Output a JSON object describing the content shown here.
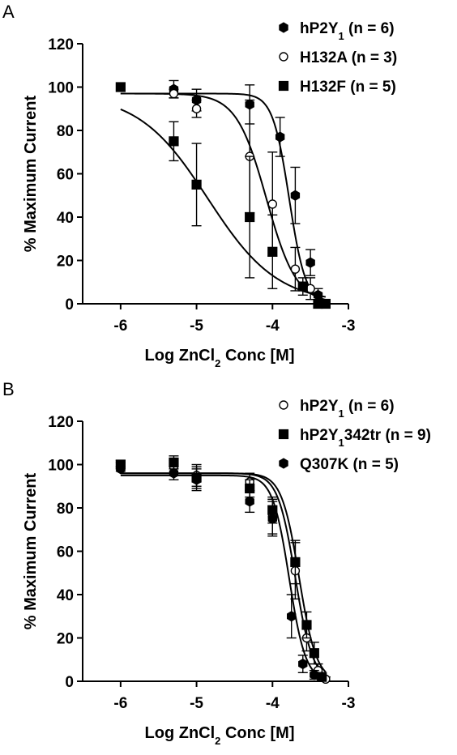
{
  "chart_data": [
    {
      "panel": "A",
      "type": "scatter",
      "ylabel": "% Maximum Current",
      "xlabel_parts": [
        "Log ZnCl",
        "2",
        " Conc [M]"
      ],
      "xlim": [
        -6.5,
        -3
      ],
      "ylim": [
        0,
        120
      ],
      "xticks": [
        -6,
        -5,
        -4,
        -3
      ],
      "yticks": [
        0,
        20,
        40,
        60,
        80,
        100,
        120
      ],
      "legend_position": "top-right",
      "grid": false,
      "series": [
        {
          "name_parts": [
            "hP2Y",
            "1",
            " (n = 6)"
          ],
          "marker": "hexagon",
          "fill": "#000000",
          "fit": {
            "top": 97,
            "bottom": 0,
            "log_ic50": -3.78,
            "hill": 4.0
          },
          "points": [
            {
              "x": -5.3,
              "y": 99,
              "err": 4
            },
            {
              "x": -5.0,
              "y": 94,
              "err": 5
            },
            {
              "x": -4.3,
              "y": 92,
              "err": 9
            },
            {
              "x": -3.9,
              "y": 77,
              "err": 9
            },
            {
              "x": -3.7,
              "y": 50,
              "err": 13
            },
            {
              "x": -3.5,
              "y": 19,
              "err": 6
            },
            {
              "x": -3.4,
              "y": 4,
              "err": 3
            }
          ]
        },
        {
          "name_parts": [
            "H132A (n = 3)"
          ],
          "marker": "circle",
          "fill": "#ffffff",
          "fit": {
            "top": 97,
            "bottom": 0,
            "log_ic50": -4.08,
            "hill": 2.2
          },
          "points": [
            {
              "x": -5.3,
              "y": 97,
              "err": 2
            },
            {
              "x": -5.0,
              "y": 90,
              "err": 4
            },
            {
              "x": -4.3,
              "y": 68,
              "err": 26
            },
            {
              "x": -4.0,
              "y": 46,
              "err": 24
            },
            {
              "x": -3.7,
              "y": 16,
              "err": 10
            },
            {
              "x": -3.5,
              "y": 7,
              "err": 5
            }
          ]
        },
        {
          "name_parts": [
            "H132F (n = 5)"
          ],
          "marker": "square",
          "fill": "#000000",
          "fit": {
            "top": 97,
            "bottom": 0,
            "log_ic50": -4.85,
            "hill": 0.95
          },
          "points": [
            {
              "x": -6.0,
              "y": 100,
              "err": 0
            },
            {
              "x": -5.3,
              "y": 75,
              "err": 9
            },
            {
              "x": -5.0,
              "y": 55,
              "err": 19
            },
            {
              "x": -4.3,
              "y": 40,
              "err": 28
            },
            {
              "x": -4.0,
              "y": 24,
              "err": 17
            },
            {
              "x": -3.6,
              "y": 8,
              "err": 4
            },
            {
              "x": -3.4,
              "y": 0,
              "err": 0
            },
            {
              "x": -3.3,
              "y": 0,
              "err": 0
            }
          ]
        }
      ]
    },
    {
      "panel": "B",
      "type": "scatter",
      "ylabel": "% Maximum Current",
      "xlabel_parts": [
        "Log ZnCl",
        "2",
        " Conc [M]"
      ],
      "xlim": [
        -6.5,
        -3
      ],
      "ylim": [
        0,
        120
      ],
      "xticks": [
        -6,
        -5,
        -4,
        -3
      ],
      "yticks": [
        0,
        20,
        40,
        60,
        80,
        100,
        120
      ],
      "legend_position": "top-right",
      "grid": false,
      "series": [
        {
          "name_parts": [
            "hP2Y",
            "1",
            " (n = 6)"
          ],
          "marker": "circle",
          "fill": "#ffffff",
          "fit": {
            "top": 96,
            "bottom": 0,
            "log_ic50": -3.7,
            "hill": 3.8
          },
          "points": [
            {
              "x": -6.0,
              "y": 100,
              "err": 2
            },
            {
              "x": -5.3,
              "y": 99,
              "err": 3
            },
            {
              "x": -5.0,
              "y": 95,
              "err": 5
            },
            {
              "x": -4.3,
              "y": 92,
              "err": 4
            },
            {
              "x": -4.0,
              "y": 76,
              "err": 8
            },
            {
              "x": -3.7,
              "y": 51,
              "err": 13
            },
            {
              "x": -3.55,
              "y": 20,
              "err": 6
            },
            {
              "x": -3.4,
              "y": 5,
              "err": 3
            },
            {
              "x": -3.3,
              "y": 1,
              "err": 1
            }
          ]
        },
        {
          "name_parts": [
            "hP2Y",
            "1",
            "342tr (n = 9)"
          ],
          "marker": "square",
          "fill": "#000000",
          "fit": {
            "top": 96,
            "bottom": 0,
            "log_ic50": -3.65,
            "hill": 3.8
          },
          "points": [
            {
              "x": -6.0,
              "y": 100,
              "err": 1
            },
            {
              "x": -5.3,
              "y": 101,
              "err": 3
            },
            {
              "x": -5.0,
              "y": 94,
              "err": 5
            },
            {
              "x": -4.3,
              "y": 89,
              "err": 4
            },
            {
              "x": -4.0,
              "y": 79,
              "err": 6
            },
            {
              "x": -3.7,
              "y": 55,
              "err": 10
            },
            {
              "x": -3.55,
              "y": 26,
              "err": 6
            },
            {
              "x": -3.45,
              "y": 13,
              "err": 5
            },
            {
              "x": -3.35,
              "y": 2,
              "err": 1
            }
          ]
        },
        {
          "name_parts": [
            "Q307K (n = 5)"
          ],
          "marker": "hexagon",
          "fill": "#000000",
          "fit": {
            "top": 95,
            "bottom": 0,
            "log_ic50": -3.78,
            "hill": 4.0
          },
          "points": [
            {
              "x": -6.0,
              "y": 98,
              "err": 1
            },
            {
              "x": -5.3,
              "y": 96,
              "err": 3
            },
            {
              "x": -5.0,
              "y": 93,
              "err": 5
            },
            {
              "x": -4.3,
              "y": 83,
              "err": 5
            },
            {
              "x": -4.0,
              "y": 75,
              "err": 8
            },
            {
              "x": -3.75,
              "y": 30,
              "err": 10
            },
            {
              "x": -3.6,
              "y": 8,
              "err": 4
            },
            {
              "x": -3.45,
              "y": 3,
              "err": 2
            }
          ]
        }
      ]
    }
  ]
}
